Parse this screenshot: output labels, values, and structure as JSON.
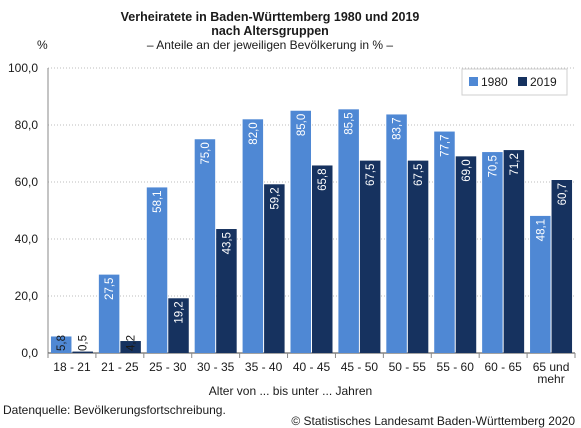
{
  "chart_data": {
    "type": "bar",
    "title": "Verheiratete in Baden-Württemberg 1980 und 2019",
    "title_line2": "nach Altersgruppen",
    "subtitle": "– Anteile an der jeweiligen Bevölkerung in % –",
    "ylabel": "%",
    "xlabel": "Alter von ... bis unter ... Jahren",
    "categories": [
      "18 - 21",
      "21 - 25",
      "25 - 30",
      "30 - 35",
      "35 - 40",
      "40 - 45",
      "45 - 50",
      "50 - 55",
      "55 - 60",
      "60 - 65",
      "65 und mehr"
    ],
    "series": [
      {
        "name": "1980",
        "color": "#4f88d4",
        "values": [
          5.8,
          27.5,
          58.1,
          75.0,
          82.0,
          85.0,
          85.5,
          83.7,
          77.7,
          70.5,
          48.1
        ],
        "labels": [
          "5,8",
          "27,5",
          "58,1",
          "75,0",
          "82,0",
          "85,0",
          "85,5",
          "83,7",
          "77,7",
          "70,5",
          "48,1"
        ]
      },
      {
        "name": "2019",
        "color": "#16325f",
        "values": [
          0.5,
          4.2,
          19.2,
          43.5,
          59.2,
          65.8,
          67.5,
          67.5,
          69.0,
          71.2,
          60.7
        ],
        "labels": [
          "0,5",
          "4,2",
          "19,2",
          "43,5",
          "59,2",
          "65,8",
          "67,5",
          "67,5",
          "69,0",
          "71,2",
          "60,7"
        ]
      }
    ],
    "ylim": [
      0,
      100
    ],
    "yticks": [
      "0,0",
      "20,0",
      "40,0",
      "60,0",
      "80,0",
      "100,0"
    ],
    "grid": true,
    "legend_position": "top-right"
  },
  "footer": {
    "source": "Datenquelle: Bevölkerungsfortschreibung.",
    "copyright": "© Statistisches Landesamt Baden-Württemberg 2020"
  }
}
